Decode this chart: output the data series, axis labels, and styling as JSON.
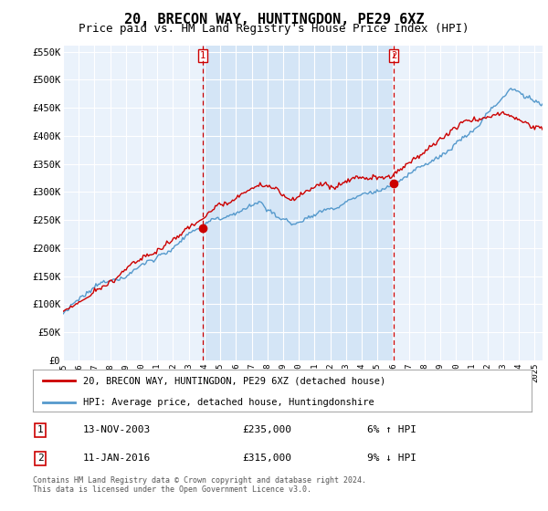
{
  "title": "20, BRECON WAY, HUNTINGDON, PE29 6XZ",
  "subtitle": "Price paid vs. HM Land Registry's House Price Index (HPI)",
  "ylabel_ticks": [
    "£0",
    "£50K",
    "£100K",
    "£150K",
    "£200K",
    "£250K",
    "£300K",
    "£350K",
    "£400K",
    "£450K",
    "£500K",
    "£550K"
  ],
  "ytick_values": [
    0,
    50000,
    100000,
    150000,
    200000,
    250000,
    300000,
    350000,
    400000,
    450000,
    500000,
    550000
  ],
  "ylim": [
    0,
    560000
  ],
  "xlim_start": 1995.0,
  "xlim_end": 2025.5,
  "bg_color": "#eaf2fb",
  "shade_color": "#cce0f5",
  "red_line_color": "#cc0000",
  "blue_line_color": "#5599cc",
  "marker1_date": 2003.87,
  "marker1_value": 235000,
  "marker2_date": 2016.03,
  "marker2_value": 315000,
  "legend_label1": "20, BRECON WAY, HUNTINGDON, PE29 6XZ (detached house)",
  "legend_label2": "HPI: Average price, detached house, Huntingdonshire",
  "annotation1_date": "13-NOV-2003",
  "annotation1_price": "£235,000",
  "annotation1_hpi": "6% ↑ HPI",
  "annotation2_date": "11-JAN-2016",
  "annotation2_price": "£315,000",
  "annotation2_hpi": "9% ↓ HPI",
  "footer": "Contains HM Land Registry data © Crown copyright and database right 2024.\nThis data is licensed under the Open Government Licence v3.0.",
  "title_fontsize": 11,
  "subtitle_fontsize": 9
}
